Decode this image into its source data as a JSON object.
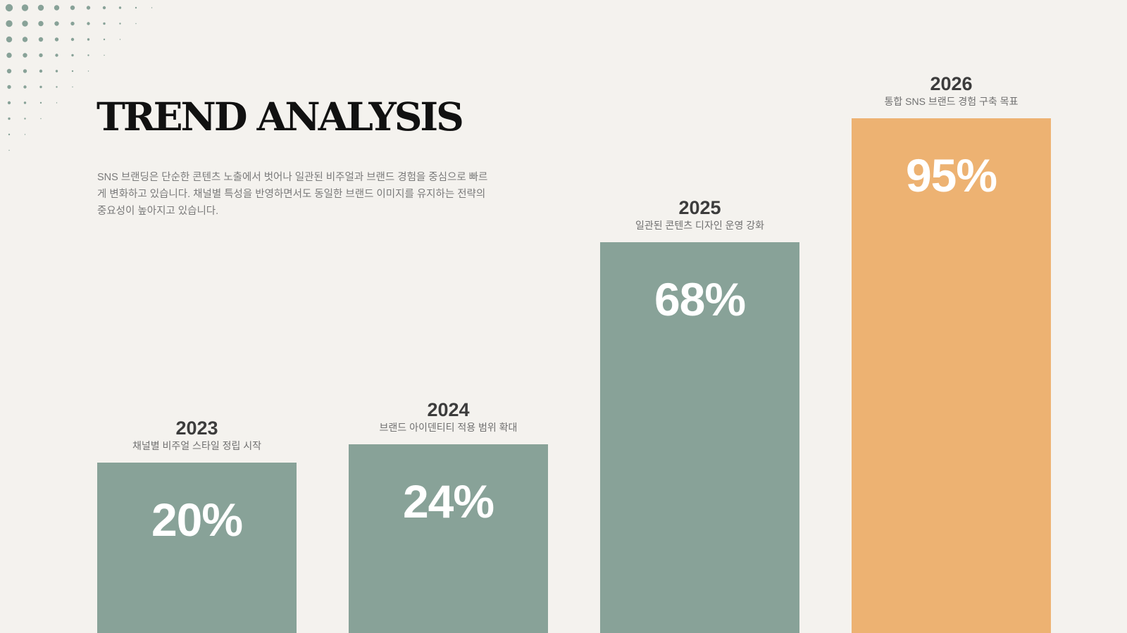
{
  "title": "TREND ANALYSIS",
  "description": "SNS 브랜딩은 단순한 콘텐츠 노출에서 벗어나 일관된 비주얼과 브랜드 경험을 중심으로 빠르게 변화하고 있습니다. 채널별 특성을 반영하면서도 동일한 브랜드 이미지를 유지하는 전략의 중요성이 높아지고 있습니다.",
  "colors": {
    "background": "#f4f2ee",
    "bar_primary": "#88a298",
    "bar_highlight": "#edb272",
    "dots": "#88a298"
  },
  "chart_data": {
    "type": "bar",
    "categories": [
      "2023",
      "2024",
      "2025",
      "2026"
    ],
    "values": [
      20,
      24,
      68,
      95
    ],
    "value_labels": [
      "20%",
      "24%",
      "68%",
      "95%"
    ],
    "descriptions": [
      "채널별 비주얼 스타일 정립 시작",
      "브랜드 아이덴티티 적용 범위 확대",
      "일관된 콘텐츠 디자인 운영 강화",
      "통합 SNS 브랜드 경험 구축 목표"
    ],
    "highlight_index": 3,
    "title": "",
    "xlabel": "",
    "ylabel": "",
    "grid": false
  }
}
